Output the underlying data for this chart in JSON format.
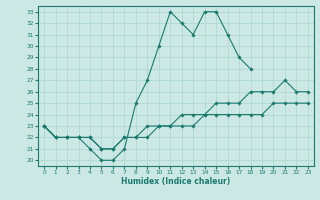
{
  "xlabel": "Humidex (Indice chaleur)",
  "ylabel": "",
  "xlim": [
    -0.5,
    23.5
  ],
  "ylim": [
    19.5,
    33.5
  ],
  "xticks": [
    0,
    1,
    2,
    3,
    4,
    5,
    6,
    7,
    8,
    9,
    10,
    11,
    12,
    13,
    14,
    15,
    16,
    17,
    18,
    19,
    20,
    21,
    22,
    23
  ],
  "ytick_vals": [
    20,
    21,
    22,
    23,
    24,
    25,
    26,
    27,
    28,
    29,
    30,
    31,
    32,
    33
  ],
  "bg_color": "#cce8e5",
  "grid_color": "#b0d8d4",
  "line_color": "#1a7a6e",
  "series": [
    {
      "x": [
        0,
        1,
        2,
        3,
        4,
        5,
        6,
        7,
        8,
        9,
        10,
        11,
        12,
        13,
        14,
        15,
        16,
        17,
        18
      ],
      "y": [
        23,
        22,
        22,
        22,
        21,
        20,
        20,
        21,
        25,
        27,
        30,
        33,
        32,
        31,
        33,
        33,
        31,
        29,
        28
      ]
    },
    {
      "x": [
        0,
        1,
        2,
        3,
        4,
        5,
        6,
        7,
        8,
        9,
        10,
        11,
        12,
        13,
        14,
        15,
        16,
        17,
        18,
        19,
        20,
        21,
        22,
        23
      ],
      "y": [
        23,
        22,
        22,
        22,
        22,
        21,
        21,
        22,
        22,
        23,
        23,
        23,
        24,
        24,
        24,
        25,
        25,
        25,
        26,
        26,
        26,
        27,
        26,
        26
      ]
    },
    {
      "x": [
        0,
        1,
        2,
        3,
        4,
        5,
        6,
        7,
        8,
        9,
        10,
        11,
        12,
        13,
        14,
        15,
        16,
        17,
        18,
        19,
        20,
        21,
        22,
        23
      ],
      "y": [
        23,
        22,
        22,
        22,
        22,
        21,
        21,
        22,
        22,
        22,
        23,
        23,
        23,
        23,
        24,
        24,
        24,
        24,
        24,
        24,
        25,
        25,
        25,
        25
      ]
    }
  ]
}
